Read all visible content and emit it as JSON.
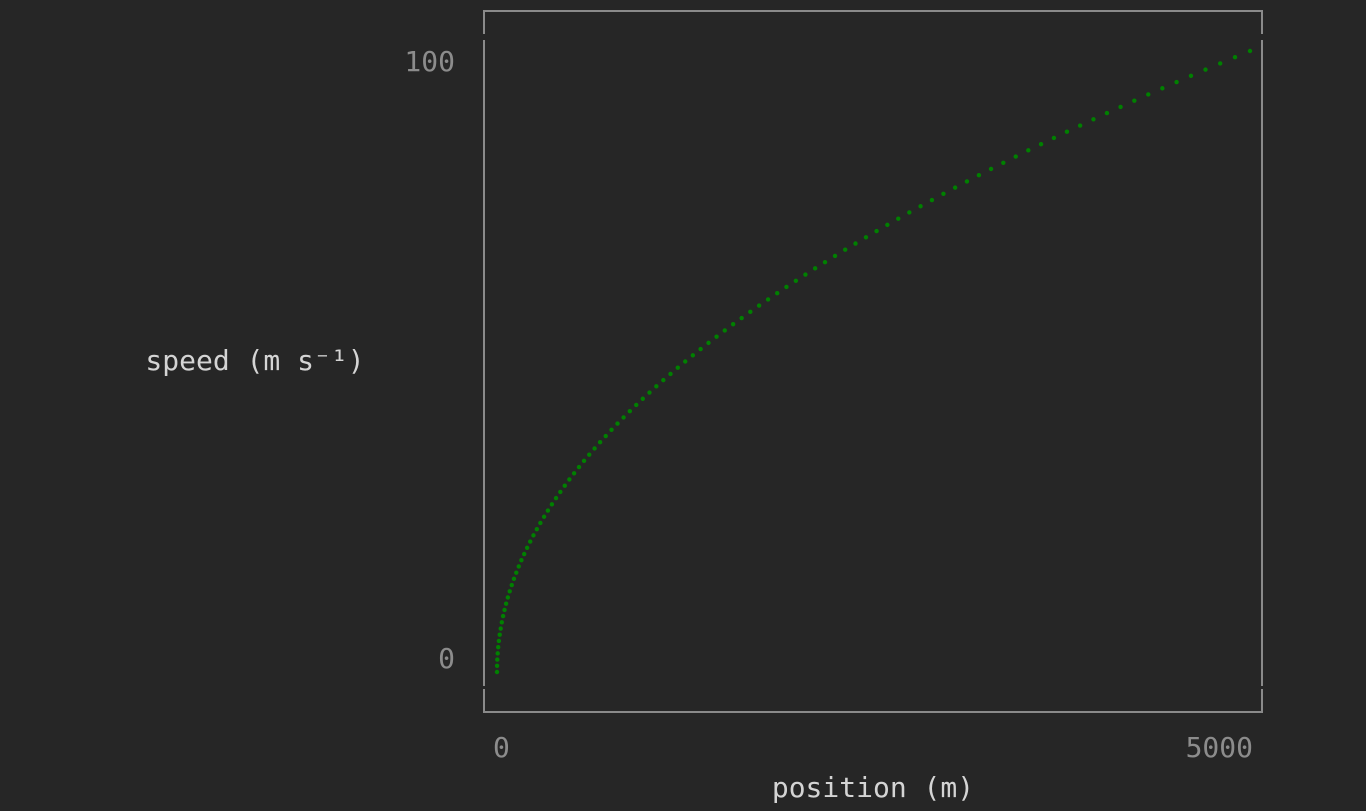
{
  "chart_data": {
    "type": "scatter",
    "xlabel": "position (m)",
    "ylabel": "speed (m s⁻¹)",
    "xlim": [
      0,
      5000
    ],
    "ylim": [
      0,
      100
    ],
    "xticks": [
      0,
      5000
    ],
    "yticks": [
      0,
      100
    ],
    "grid": false,
    "series": [
      {
        "color": "#008000",
        "x": [
          0,
          0.5,
          2,
          4.5,
          8,
          12.5,
          18,
          24.5,
          32,
          40.5,
          50,
          60.5,
          72,
          84.5,
          98,
          112.5,
          128,
          144.5,
          162,
          180.5,
          200,
          220.5,
          242,
          264.5,
          288,
          312.5,
          338,
          364.5,
          392,
          420.5,
          450,
          480.5,
          512,
          544.5,
          578,
          612.5,
          648,
          684.5,
          722,
          760.5,
          800,
          840.5,
          882,
          924.5,
          968,
          1012.5,
          1058,
          1104.5,
          1152,
          1200.5,
          1250,
          1300.5,
          1352,
          1404.5,
          1458,
          1512.5,
          1568,
          1624.5,
          1682,
          1740.5,
          1800,
          1860.5,
          1922,
          1984.5,
          2048,
          2112.5,
          2178,
          2244.5,
          2312,
          2380.5,
          2450,
          2520.5,
          2592,
          2664.5,
          2738,
          2812.5,
          2888,
          2964.5,
          3042,
          3120.5,
          3200,
          3280.5,
          3362,
          3444.5,
          3528,
          3612.5,
          3698,
          3784.5,
          3872,
          3960.5,
          4050,
          4140.5,
          4232,
          4324.5,
          4418,
          4512.5,
          4608,
          4704.5,
          4802,
          4900.5,
          5000
        ],
        "values": [
          0,
          1,
          2,
          3,
          4,
          5,
          6,
          7,
          8,
          9,
          10,
          11,
          12,
          13,
          14,
          15,
          16,
          17,
          18,
          19,
          20,
          21,
          22,
          23,
          24,
          25,
          26,
          27,
          28,
          29,
          30,
          31,
          32,
          33,
          34,
          35,
          36,
          37,
          38,
          39,
          40,
          41,
          42,
          43,
          44,
          45,
          46,
          47,
          48,
          49,
          50,
          51,
          52,
          53,
          54,
          55,
          56,
          57,
          58,
          59,
          60,
          61,
          62,
          63,
          64,
          65,
          66,
          67,
          68,
          69,
          70,
          71,
          72,
          73,
          74,
          75,
          76,
          77,
          78,
          79,
          80,
          81,
          82,
          83,
          84,
          85,
          86,
          87,
          88,
          89,
          90,
          91,
          92,
          93,
          94,
          95,
          96,
          97,
          98,
          99,
          100
        ]
      }
    ]
  }
}
